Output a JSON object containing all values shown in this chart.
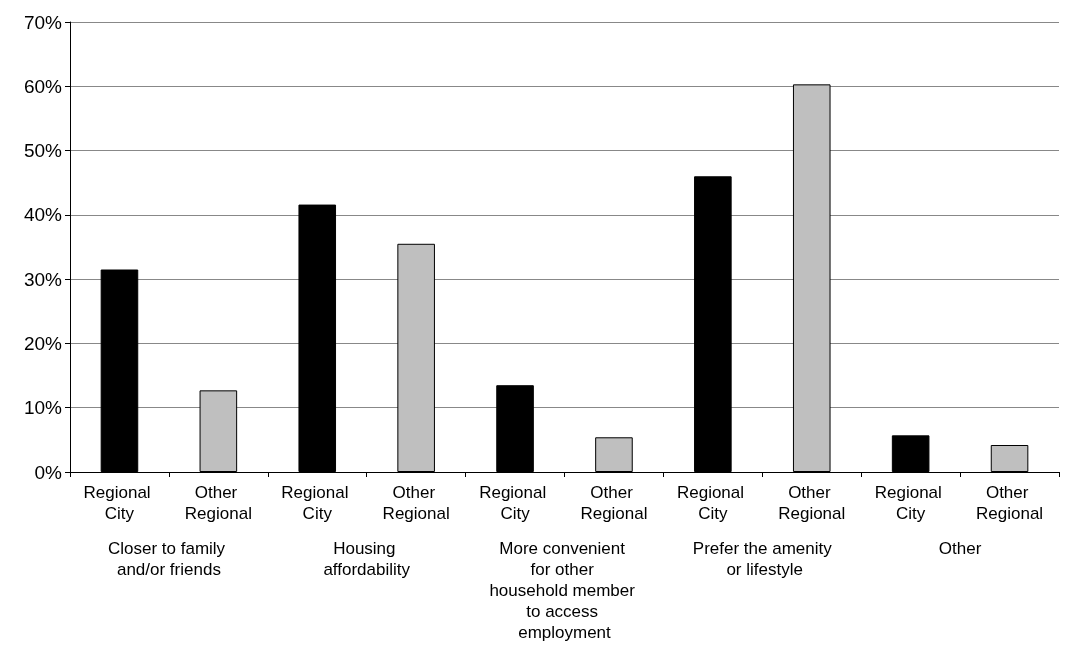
{
  "chart_data": {
    "type": "bar",
    "categories": [
      "Regional City",
      "Other Regional",
      "Regional City",
      "Other Regional",
      "Regional City",
      "Other Regional",
      "Regional City",
      "Other Regional",
      "Regional City",
      "Other Regional"
    ],
    "values": [
      31.5,
      12.7,
      41.6,
      35.5,
      13.5,
      5.4,
      46.0,
      60.3,
      5.7,
      4.2
    ],
    "colors": [
      "#000000",
      "#bfbfbf",
      "#000000",
      "#bfbfbf",
      "#000000",
      "#bfbfbf",
      "#000000",
      "#bfbfbf",
      "#000000",
      "#bfbfbf"
    ],
    "ylim": [
      0,
      70
    ],
    "yticks": [
      {
        "value": 0,
        "label": "0%"
      },
      {
        "value": 10,
        "label": "10%"
      },
      {
        "value": 20,
        "label": "20%"
      },
      {
        "value": 30,
        "label": "30%"
      },
      {
        "value": 40,
        "label": "40%"
      },
      {
        "value": 50,
        "label": "50%"
      },
      {
        "value": 60,
        "label": "60%"
      },
      {
        "value": 70,
        "label": "70%"
      }
    ],
    "grid": "y",
    "annotations": [
      "Closer to family and/or friends",
      "Housing affordability",
      "More convenient for other household member to access employment",
      "Prefer the amenity or lifestyle",
      "Other"
    ]
  }
}
